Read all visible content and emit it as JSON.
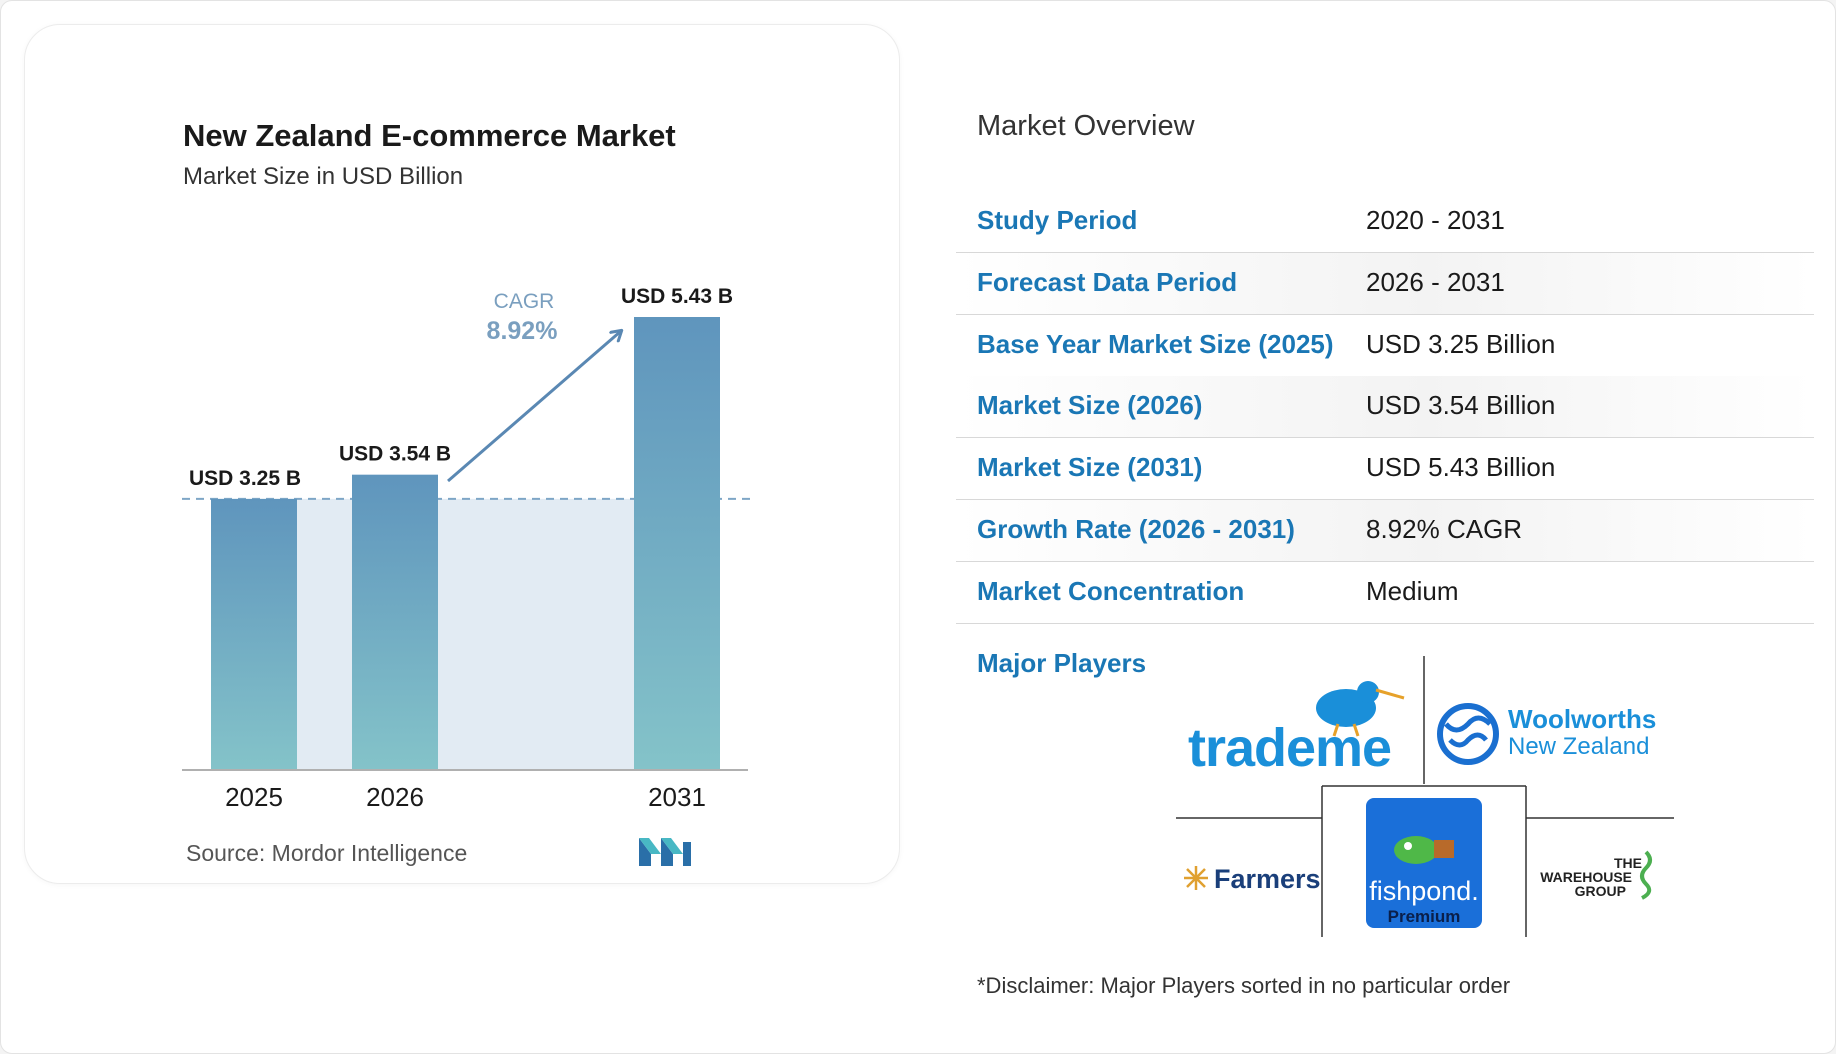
{
  "chart_data": {
    "type": "bar",
    "title": "New Zealand E-commerce Market",
    "subtitle": "Market Size in USD Billion",
    "categories": [
      "2025",
      "2026",
      "2031"
    ],
    "values": [
      3.25,
      3.54,
      5.43
    ],
    "value_labels": [
      "USD 3.25 B",
      "USD 3.54 B",
      "USD 5.43 B"
    ],
    "cagr_label": "CAGR",
    "cagr_value": "8.92%",
    "ylim": [
      0,
      5.43
    ],
    "grid": false,
    "reference_line_value": 3.25
  },
  "colors": {
    "bar_top": "#5f95bd",
    "bar_bottom": "#84c3c9",
    "accent_blue": "#1a77b5",
    "band_fill": "#e2ebf3",
    "cagr_text": "#7a9fbf",
    "arrow": "#5a88b3"
  },
  "source": "Source:  Mordor Intelligence",
  "overview": {
    "title": "Market Overview",
    "rows": [
      {
        "label": "Study Period",
        "value": "2020 - 2031"
      },
      {
        "label": "Forecast Data Period",
        "value": "2026 - 2031"
      },
      {
        "label": "Base Year Market Size (2025)",
        "value": "USD 3.25 Billion"
      },
      {
        "label": "Market Size (2026)",
        "value": "USD 3.54 Billion"
      },
      {
        "label": "Market Size (2031)",
        "value": "USD 5.43 Billion"
      },
      {
        "label": "Growth Rate (2026 - 2031)",
        "value": "8.92% CAGR"
      },
      {
        "label": "Market Concentration",
        "value": "Medium"
      }
    ],
    "major_players_label": "Major Players",
    "players": [
      "trademe",
      "Woolworths New Zealand",
      "Farmers",
      "fishpond Premium",
      "THE WAREHOUSE GROUP"
    ],
    "disclaimer": "*Disclaimer: Major Players sorted in no particular order"
  }
}
